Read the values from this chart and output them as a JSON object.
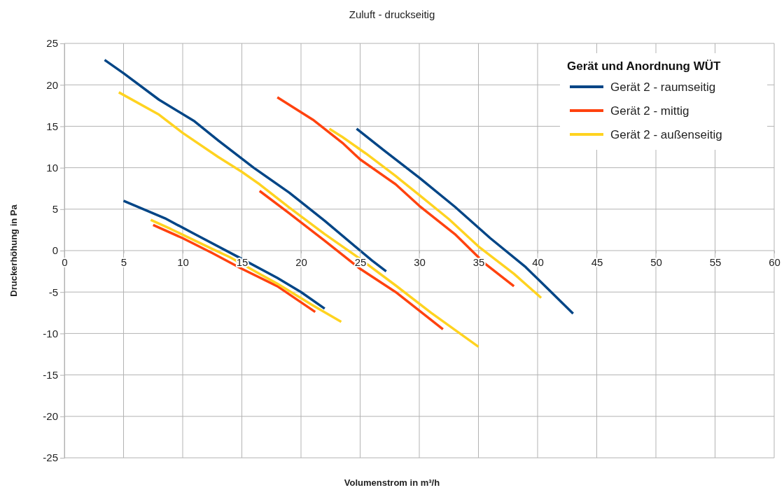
{
  "chart_data": {
    "type": "line",
    "title": "Zuluft - druckseitig",
    "xlabel": "Volumenstrom in m³/h",
    "ylabel": "Druckerhöhung in Pa",
    "legend_title": "Gerät und Anordnung WÜT",
    "legend": "top right",
    "grid": true,
    "line_style": "solid",
    "marker": "none",
    "xlim": [
      0,
      60
    ],
    "xticks": [
      0,
      5,
      10,
      15,
      20,
      25,
      30,
      35,
      40,
      45,
      50,
      55,
      60
    ],
    "ylim": [
      -25,
      25
    ],
    "yticks": [
      -25,
      -20,
      -15,
      -10,
      -5,
      0,
      5,
      10,
      15,
      20,
      25
    ],
    "series": [
      {
        "name": "Gerät 2 - raumseitig",
        "color": "#004586",
        "x": [
          3.4,
          5,
          8,
          11,
          13,
          16,
          19,
          22,
          25,
          26,
          27.2,
          null,
          5,
          8.5,
          11,
          15,
          18,
          20,
          22,
          null,
          24.7,
          27,
          30,
          33,
          36,
          39,
          41,
          43
        ],
        "values": [
          23,
          21.4,
          18.2,
          15.6,
          13.3,
          10,
          7,
          3.6,
          0,
          -1.2,
          -2.5,
          null,
          6,
          3.9,
          2,
          -1,
          -3.3,
          -5,
          -7,
          null,
          14.7,
          12.1,
          8.8,
          5.3,
          1.5,
          -2,
          -4.8,
          -7.6
        ]
      },
      {
        "name": "Gerät 2 - mittig",
        "color": "#ff420e",
        "x": [
          18,
          21,
          23.5,
          25,
          28,
          30,
          33,
          35.5,
          38,
          null,
          16.5,
          19,
          22,
          25,
          28,
          32,
          null,
          7.5,
          10,
          12.5,
          15,
          18,
          21.2
        ],
        "values": [
          18.5,
          15.8,
          13,
          11,
          8,
          5.4,
          2,
          -1.5,
          -4.3,
          null,
          7.2,
          4.5,
          1.2,
          -2.2,
          -5,
          -9.5,
          null,
          3.1,
          1.5,
          -0.3,
          -2.2,
          -4.3,
          -7.4
        ]
      },
      {
        "name": "Gerät 2 - außenseitig",
        "color": "#ffd320",
        "x": [
          4.6,
          8,
          10,
          13,
          15,
          16.5,
          19,
          22,
          25,
          28,
          31,
          35,
          null,
          22.4,
          23.5,
          25.5,
          28,
          30,
          32.5,
          35,
          38,
          40.3,
          null,
          7.3,
          9,
          12.5,
          14,
          16.5,
          18,
          21,
          23.4
        ],
        "values": [
          19.1,
          16.4,
          14.2,
          11.3,
          9.5,
          8,
          5.2,
          2,
          -1,
          -4.2,
          -7.5,
          -11.6,
          null,
          14.7,
          13.7,
          11.7,
          9,
          6.7,
          3.8,
          0.5,
          -2.8,
          -5.7,
          null,
          3.7,
          2.6,
          0.2,
          -0.8,
          -2.8,
          -4,
          -6.6,
          -8.6
        ]
      }
    ]
  }
}
